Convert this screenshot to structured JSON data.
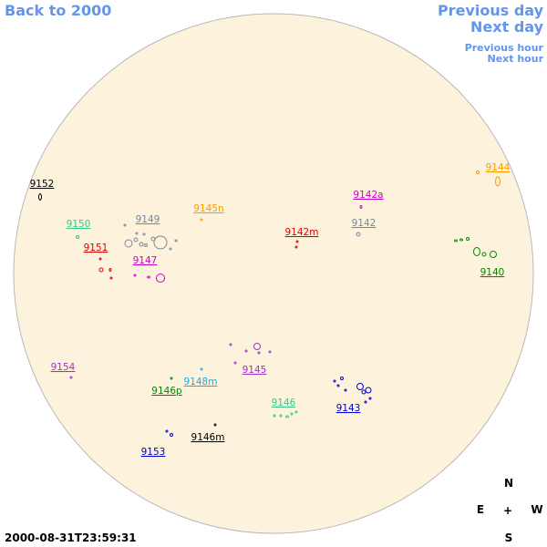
{
  "nav": {
    "back": "Back to 2000",
    "previous_day": "Previous day",
    "next_day": "Next day",
    "previous_hour": "Previous hour",
    "next_hour": "Next hour"
  },
  "regions": [
    {
      "label": "9152",
      "color": "#000000"
    },
    {
      "label": "9150",
      "color": "#33cc88"
    },
    {
      "label": "9151",
      "color": "#dd0000"
    },
    {
      "label": "9149",
      "color": "#778899"
    },
    {
      "label": "9147",
      "color": "#cc00cc"
    },
    {
      "label": "9145n",
      "color": "#ff9900"
    },
    {
      "label": "9142a",
      "color": "#cc00cc"
    },
    {
      "label": "9142m",
      "color": "#dd0000"
    },
    {
      "label": "9142",
      "color": "#778899"
    },
    {
      "label": "9144",
      "color": "#ff9900"
    },
    {
      "label": "9140",
      "color": "#008800"
    },
    {
      "label": "9154",
      "color": "#9933cc"
    },
    {
      "label": "9148m",
      "color": "#22aadd"
    },
    {
      "label": "9146p",
      "color": "#008800"
    },
    {
      "label": "9145",
      "color": "#9933cc"
    },
    {
      "label": "9146",
      "color": "#33cc88"
    },
    {
      "label": "9143",
      "color": "#0000cc"
    },
    {
      "label": "9153",
      "color": "#0000cc"
    },
    {
      "label": "9146m",
      "color": "#000000"
    }
  ],
  "compass": {
    "north": "N",
    "east": "E",
    "center": "+",
    "west": "W",
    "south": "S"
  },
  "timestamp": "2000-08-31T23:59:31"
}
